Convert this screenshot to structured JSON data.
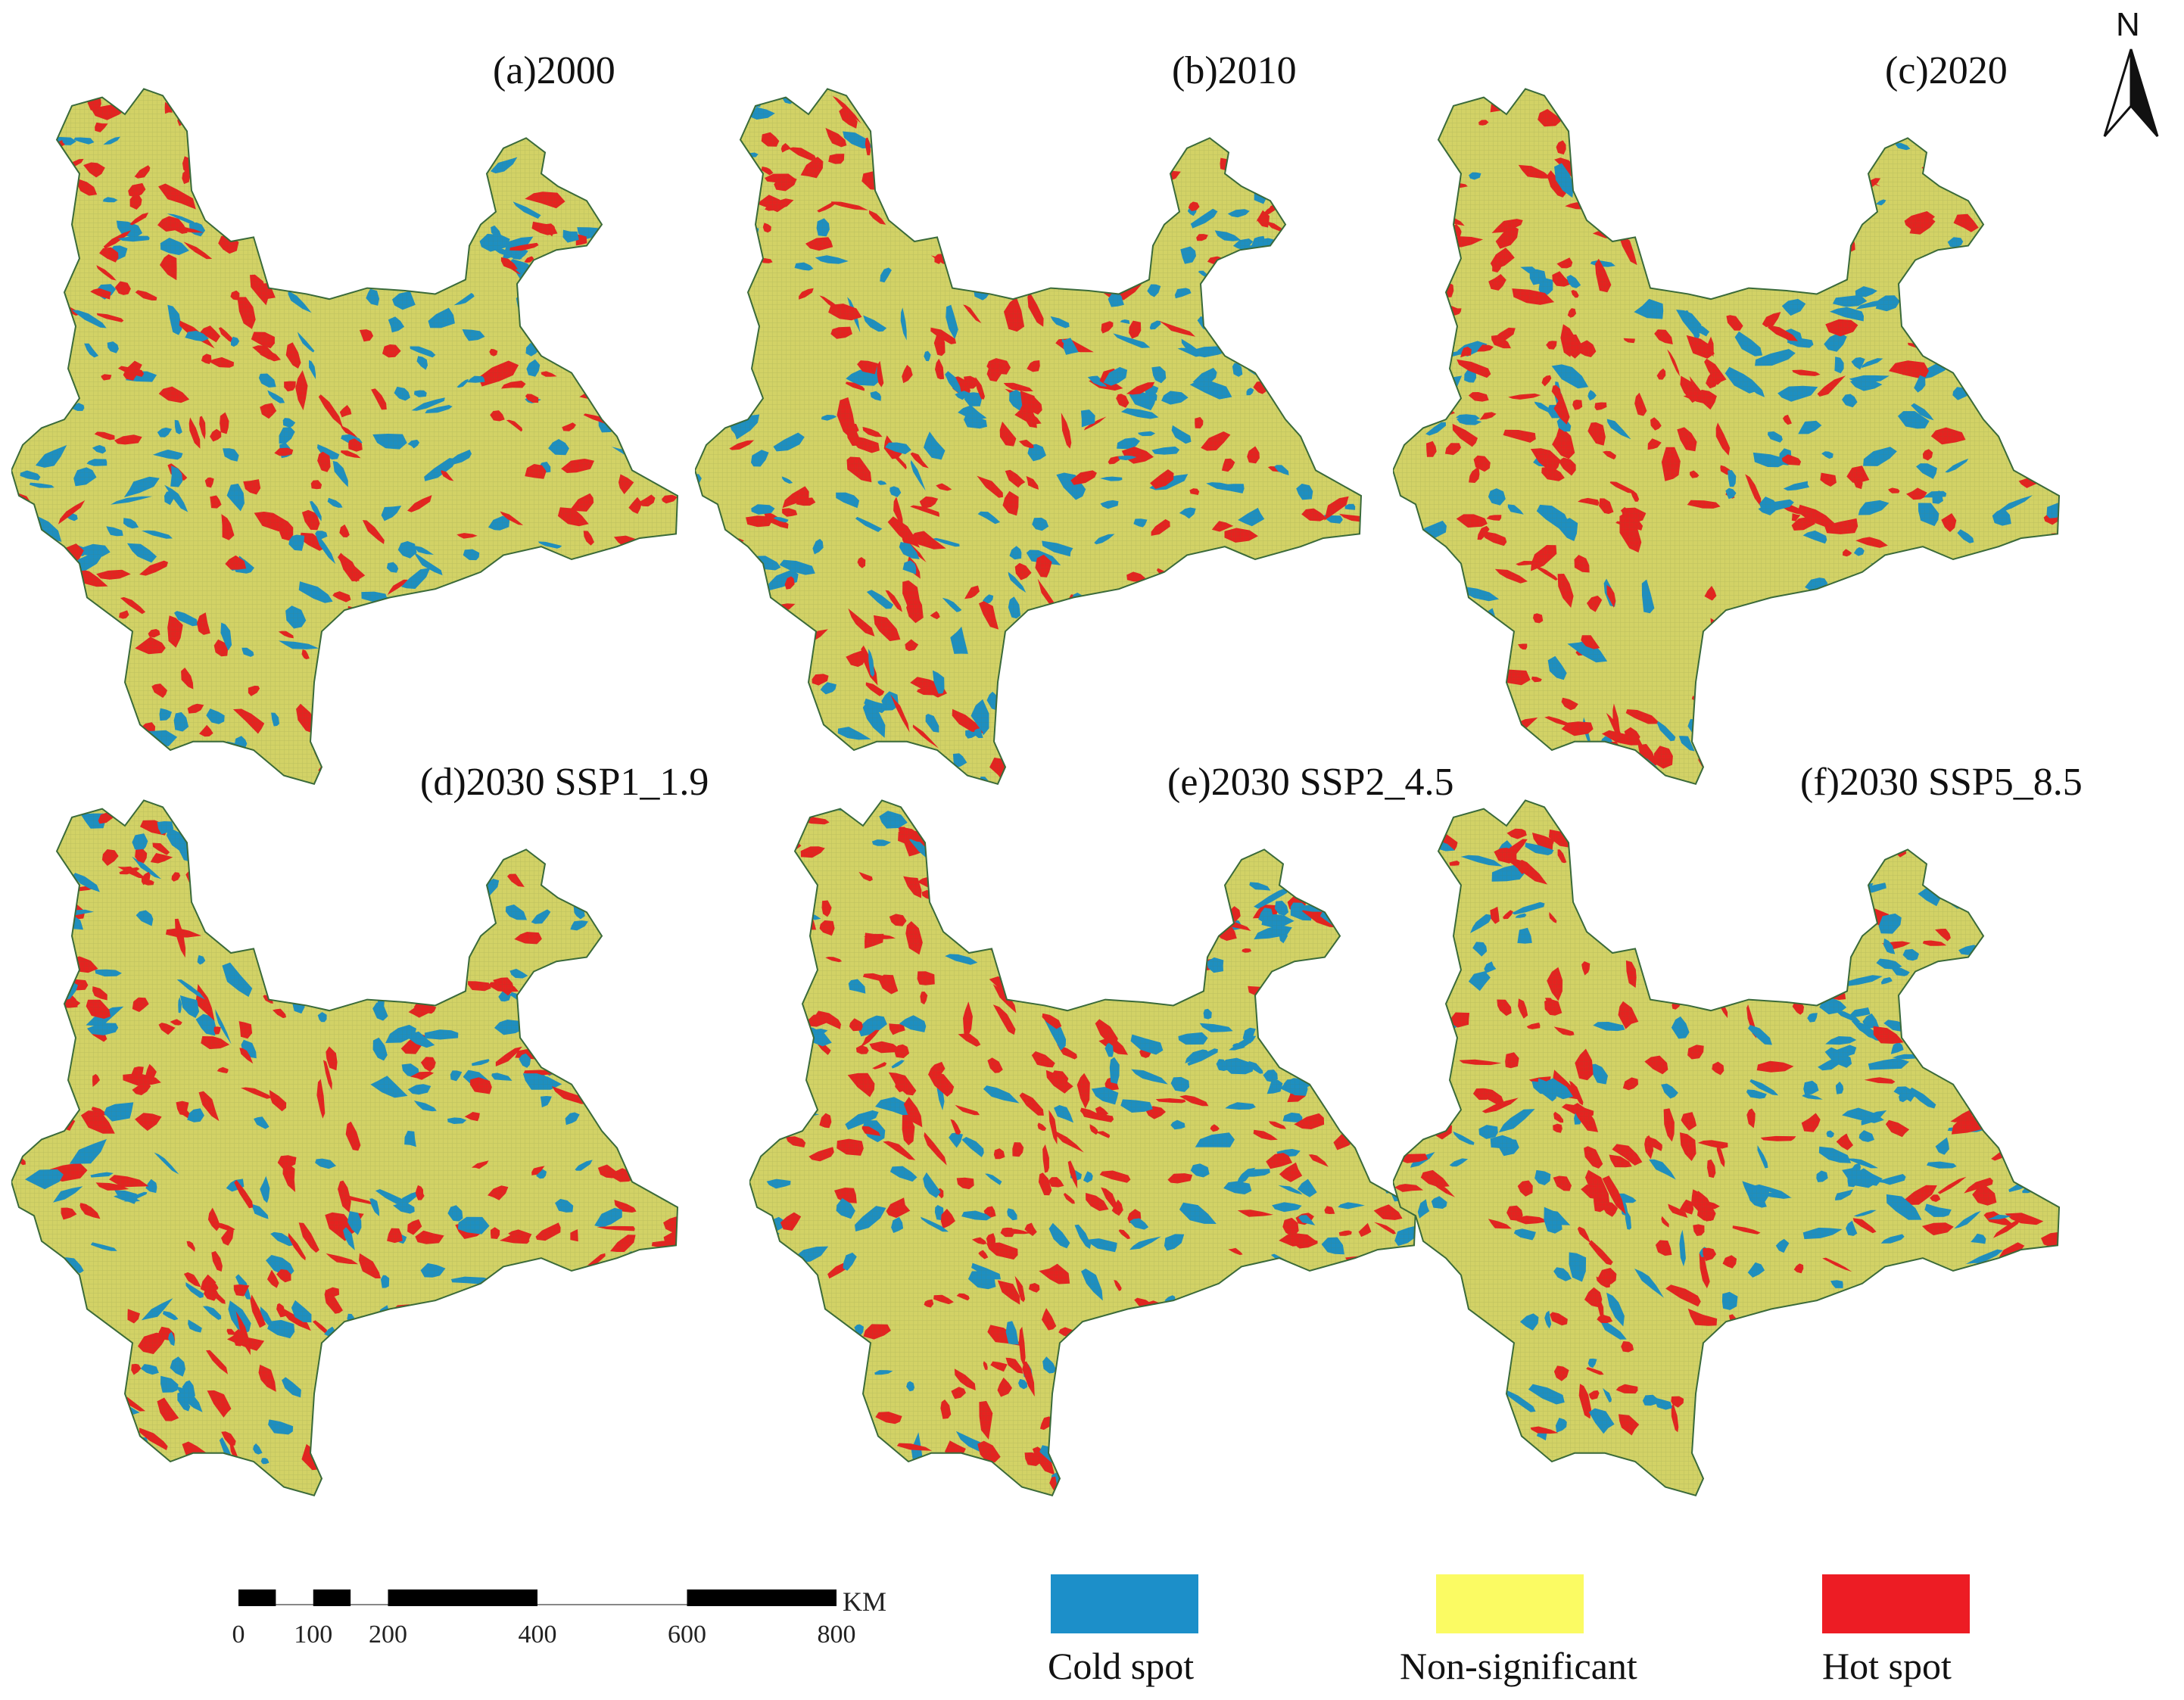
{
  "colors": {
    "cold": "#1e8fc0",
    "nonsig": "#d2d266",
    "hot": "#e42320",
    "legend_cold": "#1c8fc9",
    "legend_nonsig": "#fbfb63",
    "legend_hot": "#ed1c24"
  },
  "panels": [
    {
      "title": "(a)2000"
    },
    {
      "title": "(b)2010"
    },
    {
      "title": "(c)2020"
    },
    {
      "title": "(d)2030 SSP1_1.9"
    },
    {
      "title": "(e)2030  SSP2_4.5"
    },
    {
      "title": "(f)2030 SSP5_8.5"
    }
  ],
  "north_arrow": {
    "label": "N",
    "icon": "north-arrow-icon"
  },
  "scalebar": {
    "unit": "KM",
    "ticks": [
      "0",
      "100",
      "200",
      "400",
      "600",
      "800"
    ],
    "tick_values": [
      0,
      100,
      200,
      400,
      600,
      800
    ],
    "black_segments": [
      [
        0,
        50
      ],
      [
        100,
        150
      ],
      [
        200,
        400
      ],
      [
        600,
        800
      ]
    ]
  },
  "legend": {
    "items": [
      {
        "label": "Cold spot",
        "color_key": "legend_cold"
      },
      {
        "label": "Non-significant",
        "color_key": "legend_nonsig"
      },
      {
        "label": "Hot spot",
        "color_key": "legend_hot"
      }
    ]
  }
}
